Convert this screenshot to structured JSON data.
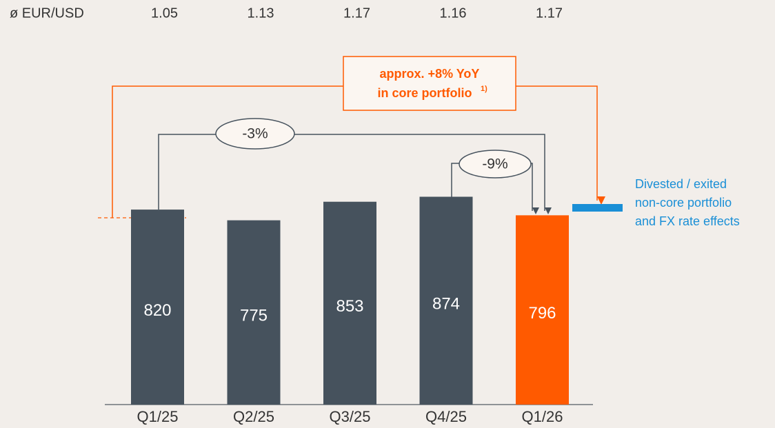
{
  "chart_data": {
    "type": "bar",
    "categories": [
      "Q1/25",
      "Q2/25",
      "Q3/25",
      "Q4/25",
      "Q1/26"
    ],
    "values": [
      820,
      775,
      853,
      874,
      796
    ],
    "colors": [
      "#46525d",
      "#46525d",
      "#46525d",
      "#46525d",
      "#ff5a00"
    ],
    "fx_label": "ø EUR/USD",
    "fx_rates": [
      1.05,
      1.13,
      1.17,
      1.16,
      1.17
    ],
    "growth_box": {
      "line1": "approx. +8% YoY",
      "line2": "in core portfolio",
      "footnote": "1)"
    },
    "changes": [
      {
        "label": "-3%"
      },
      {
        "label": "-9%"
      }
    ],
    "side_note": [
      "Divested / exited",
      "non-core portfolio",
      "and FX rate effects"
    ],
    "side_note_color": "#1a8fd6"
  }
}
